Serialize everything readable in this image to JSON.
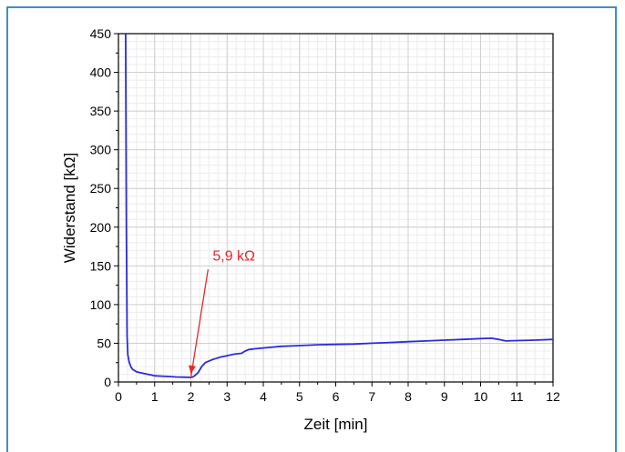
{
  "chart_data": {
    "type": "line",
    "title": "",
    "xlabel": "Zeit [min]",
    "ylabel": "Widerstand [kΩ]",
    "xlim": [
      0,
      12
    ],
    "ylim": [
      0,
      450
    ],
    "x_ticks": [
      0,
      1,
      2,
      3,
      4,
      5,
      6,
      7,
      8,
      9,
      10,
      11,
      12
    ],
    "y_ticks": [
      0,
      50,
      100,
      150,
      200,
      250,
      300,
      350,
      400,
      450
    ],
    "x_tick_labels": [
      "0",
      "1",
      "2",
      "3",
      "4",
      "5",
      "6",
      "7",
      "8",
      "9",
      "10",
      "11",
      "12"
    ],
    "y_tick_labels": [
      "0",
      "50",
      "100",
      "150",
      "200",
      "250",
      "300",
      "350",
      "400",
      "450"
    ],
    "grid": true,
    "minor_grid": true,
    "series": [
      {
        "color": "#2b2bdc",
        "x": [
          0.2,
          0.22,
          0.24,
          0.26,
          0.3,
          0.35,
          0.4,
          0.5,
          0.6,
          0.7,
          0.8,
          0.9,
          1.0,
          1.2,
          1.4,
          1.6,
          1.8,
          2.0,
          2.05,
          2.1,
          2.2,
          2.3,
          2.4,
          2.6,
          2.8,
          3.0,
          3.2,
          3.4,
          3.5,
          3.6,
          3.8,
          4.0,
          4.5,
          5.0,
          5.5,
          6.0,
          6.5,
          7.0,
          7.5,
          8.0,
          8.5,
          9.0,
          9.5,
          10.0,
          10.3,
          10.5,
          10.7,
          11.0,
          11.5,
          12.0
        ],
        "y": [
          450,
          200,
          60,
          35,
          25,
          19,
          16,
          13,
          12,
          11,
          10,
          9,
          8,
          7.5,
          7,
          6.5,
          6.2,
          5.9,
          6.5,
          8,
          12,
          20,
          25,
          29,
          32,
          34,
          36,
          37,
          40,
          42,
          43,
          44,
          46,
          47,
          48,
          48.5,
          49,
          50,
          51,
          52,
          53,
          54,
          55,
          56,
          56.5,
          55,
          53,
          53.5,
          54,
          55
        ]
      }
    ],
    "annotations": [
      {
        "text": "5,9 kΩ",
        "color": "#e8262b",
        "point": [
          2.0,
          5.9
        ],
        "label_at": [
          2.6,
          150
        ]
      }
    ]
  }
}
